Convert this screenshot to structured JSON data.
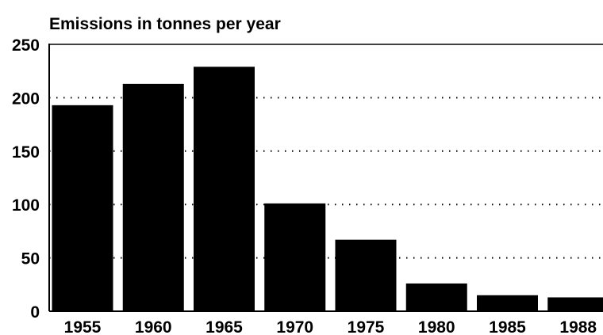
{
  "chart_data": {
    "type": "bar",
    "title": "Emissions in tonnes per year",
    "xlabel": "",
    "ylabel": "",
    "categories": [
      "1955",
      "1960",
      "1965",
      "1970",
      "1975",
      "1980",
      "1985",
      "1988"
    ],
    "values": [
      193,
      213,
      229,
      101,
      67,
      26,
      15,
      13
    ],
    "ylim": [
      0,
      250
    ],
    "y_ticks": [
      "0",
      "50",
      "100",
      "150",
      "200",
      "250"
    ],
    "grid": "horizontal dotted",
    "legend": "none",
    "colors": {
      "bar": "#000000",
      "grid": "#000000",
      "text": "#000000",
      "background": "#ffffff"
    }
  }
}
